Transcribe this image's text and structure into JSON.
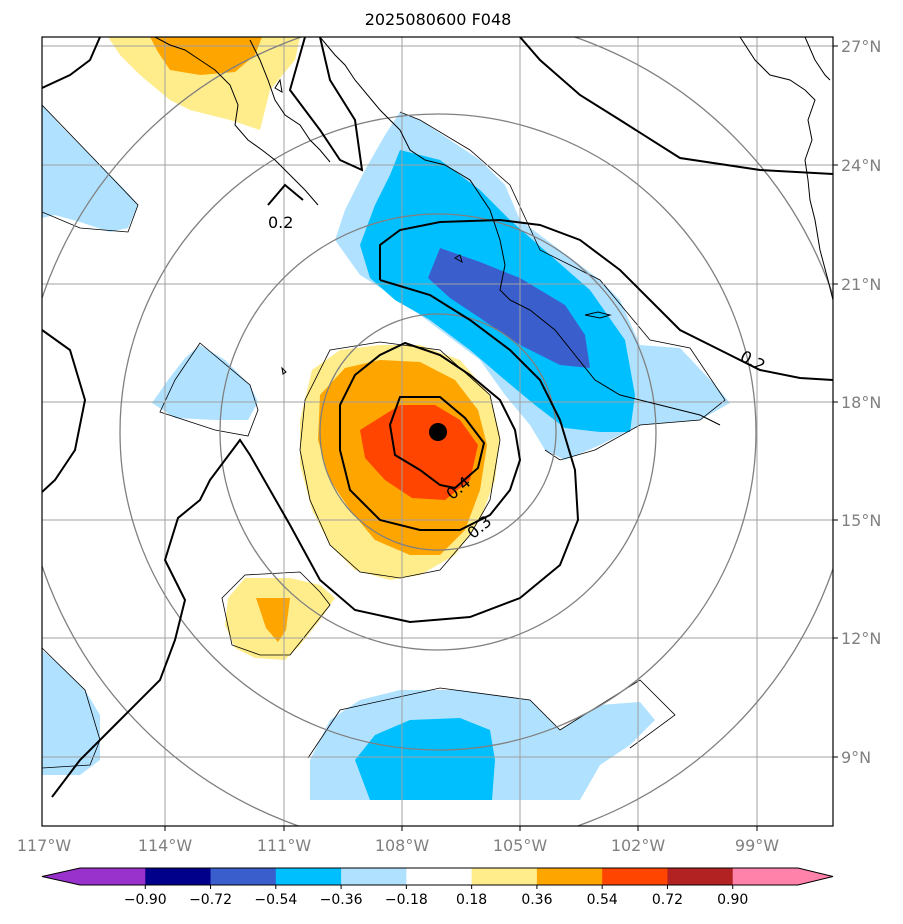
{
  "title": "2025080600 F048",
  "lat_labels": [
    "27°N",
    "24°N",
    "21°N",
    "18°N",
    "15°N",
    "12°N",
    "9°N"
  ],
  "lon_labels": [
    "117°W",
    "114°W",
    "111°W",
    "108°W",
    "105°W",
    "102°W",
    "99°W"
  ],
  "colorbar": {
    "ticks": [
      "−0.90",
      "−0.72",
      "−0.54",
      "−0.36",
      "−0.18",
      "0.18",
      "0.36",
      "0.54",
      "0.72",
      "0.90"
    ],
    "colors": [
      "#9932cc",
      "#00008b",
      "#3a5fcd",
      "#00bfff",
      "#b0e2ff",
      "#ffffff",
      "#ffec8b",
      "#ffa500",
      "#ff4500",
      "#b22222",
      "#ff82ab"
    ]
  },
  "contour_labels": [
    "0.2",
    "0.2",
    "0.3",
    "0.4"
  ],
  "center_marker": "storm-center"
}
